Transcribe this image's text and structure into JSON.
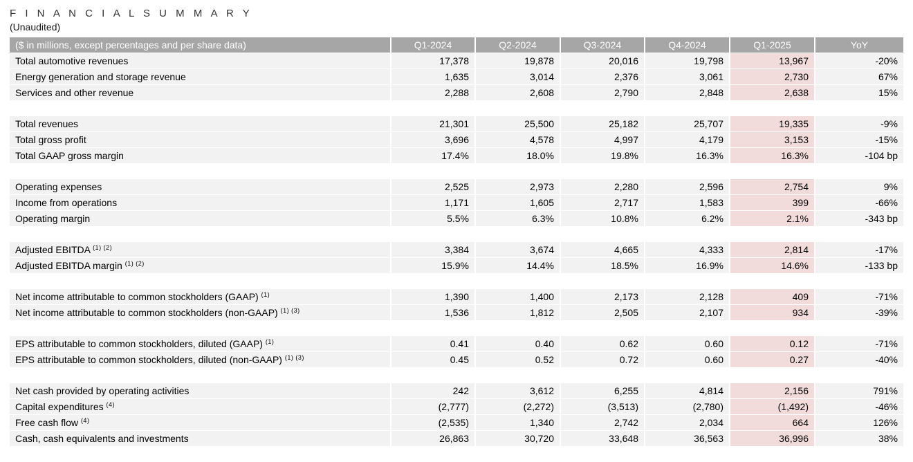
{
  "page": {
    "title": "F I N A N C I A L   S U M M A R Y",
    "subtitle": "(Unaudited)"
  },
  "colors": {
    "header_bg": "#a6a6a6",
    "header_text": "#ffffff",
    "row_bg": "#f2f2f2",
    "highlight_column_bg": "#f2dcdb",
    "text": "#000000"
  },
  "table": {
    "label_header": "($ in millions, except percentages and per share data)",
    "columns": [
      "Q1-2024",
      "Q2-2024",
      "Q3-2024",
      "Q4-2024",
      "Q1-2025",
      "YoY"
    ],
    "highlight_column": "Q1-2025",
    "groups": [
      {
        "rows": [
          {
            "label": "Total automotive revenues",
            "values": [
              "17,378",
              "19,878",
              "20,016",
              "19,798",
              "13,967",
              "-20%"
            ]
          },
          {
            "label": "Energy generation and storage revenue",
            "values": [
              "1,635",
              "3,014",
              "2,376",
              "3,061",
              "2,730",
              "67%"
            ]
          },
          {
            "label": "Services and other revenue",
            "values": [
              "2,288",
              "2,608",
              "2,790",
              "2,848",
              "2,638",
              "15%"
            ]
          }
        ]
      },
      {
        "rows": [
          {
            "label": "Total revenues",
            "values": [
              "21,301",
              "25,500",
              "25,182",
              "25,707",
              "19,335",
              "-9%"
            ]
          },
          {
            "label": "Total gross profit",
            "values": [
              "3,696",
              "4,578",
              "4,997",
              "4,179",
              "3,153",
              "-15%"
            ]
          },
          {
            "label": "Total GAAP gross margin",
            "values": [
              "17.4%",
              "18.0%",
              "19.8%",
              "16.3%",
              "16.3%",
              "-104 bp"
            ]
          }
        ]
      },
      {
        "rows": [
          {
            "label": "Operating expenses",
            "values": [
              "2,525",
              "2,973",
              "2,280",
              "2,596",
              "2,754",
              "9%"
            ]
          },
          {
            "label": "Income from operations",
            "values": [
              "1,171",
              "1,605",
              "2,717",
              "1,583",
              "399",
              "-66%"
            ]
          },
          {
            "label": "Operating margin",
            "values": [
              "5.5%",
              "6.3%",
              "10.8%",
              "6.2%",
              "2.1%",
              "-343 bp"
            ]
          }
        ]
      },
      {
        "rows": [
          {
            "label": "Adjusted EBITDA",
            "sup": "(1) (2)",
            "values": [
              "3,384",
              "3,674",
              "4,665",
              "4,333",
              "2,814",
              "-17%"
            ]
          },
          {
            "label": "Adjusted EBITDA margin",
            "sup": "(1) (2)",
            "values": [
              "15.9%",
              "14.4%",
              "18.5%",
              "16.9%",
              "14.6%",
              "-133 bp"
            ]
          }
        ]
      },
      {
        "rows": [
          {
            "label": "Net income attributable to common stockholders (GAAP)",
            "sup": "(1)",
            "values": [
              "1,390",
              "1,400",
              "2,173",
              "2,128",
              "409",
              "-71%"
            ]
          },
          {
            "label": "Net income attributable to common stockholders (non-GAAP)",
            "sup": "(1) (3)",
            "values": [
              "1,536",
              "1,812",
              "2,505",
              "2,107",
              "934",
              "-39%"
            ]
          }
        ]
      },
      {
        "rows": [
          {
            "label": "EPS attributable to common stockholders, diluted (GAAP)",
            "sup": "(1)",
            "values": [
              "0.41",
              "0.40",
              "0.62",
              "0.60",
              "0.12",
              "-71%"
            ]
          },
          {
            "label": "EPS attributable to common stockholders, diluted (non-GAAP)",
            "sup": "(1) (3)",
            "values": [
              "0.45",
              "0.52",
              "0.72",
              "0.60",
              "0.27",
              "-40%"
            ]
          }
        ]
      },
      {
        "rows": [
          {
            "label": "Net cash provided by operating activities",
            "values": [
              "242",
              "3,612",
              "6,255",
              "4,814",
              "2,156",
              "791%"
            ]
          },
          {
            "label": "Capital expenditures",
            "sup": "(4)",
            "values": [
              "(2,777)",
              "(2,272)",
              "(3,513)",
              "(2,780)",
              "(1,492)",
              "-46%"
            ]
          },
          {
            "label": "Free cash flow",
            "sup": "(4)",
            "values": [
              "(2,535)",
              "1,340",
              "2,742",
              "2,034",
              "664",
              "126%"
            ]
          },
          {
            "label": "Cash, cash equivalents and investments",
            "values": [
              "26,863",
              "30,720",
              "33,648",
              "36,563",
              "36,996",
              "38%"
            ]
          }
        ]
      }
    ]
  }
}
